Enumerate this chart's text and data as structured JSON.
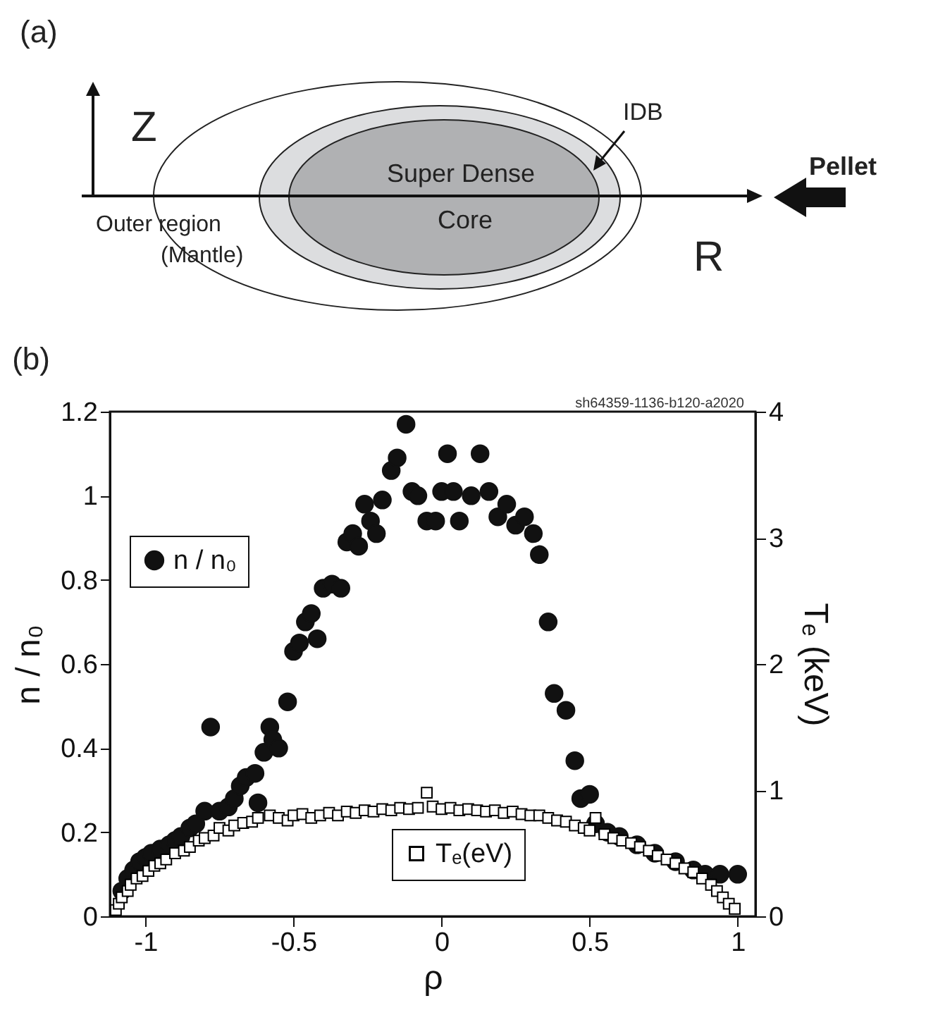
{
  "chart_data": [
    {
      "type": "other",
      "title": "(a)",
      "annotations": [
        "Z",
        "R",
        "IDB",
        "Super Dense\nCore",
        "Outer region\n(Mantle)",
        "Pellet"
      ]
    },
    {
      "type": "scatter",
      "title": "(b)",
      "xlabel": "ρ",
      "ylabel": "n / n₀",
      "y2label": "Tₑ (keV)",
      "annotations": [
        "sh64359-1136-b120-a2020"
      ],
      "xlim": [
        -1.12,
        1.06
      ],
      "xticks": [
        -1,
        -0.5,
        0,
        0.5,
        1
      ],
      "ylim": [
        0,
        1.2
      ],
      "yticks": [
        0,
        0.2,
        0.4,
        0.6,
        0.8,
        1,
        1.2
      ],
      "y2lim": [
        0,
        4
      ],
      "y2ticks": [
        0,
        1,
        2,
        3,
        4
      ],
      "grid": false,
      "legend": "left",
      "series": [
        {
          "name": "n / n₀",
          "color": "#111111",
          "marker": "circle",
          "x": [
            -1.08,
            -1.06,
            -1.04,
            -1.02,
            -1.0,
            -0.98,
            -0.95,
            -0.92,
            -0.9,
            -0.88,
            -0.85,
            -0.83,
            -0.8,
            -0.78,
            -0.75,
            -0.72,
            -0.7,
            -0.68,
            -0.66,
            -0.63,
            -0.62,
            -0.6,
            -0.58,
            -0.57,
            -0.55,
            -0.52,
            -0.5,
            -0.48,
            -0.46,
            -0.44,
            -0.42,
            -0.4,
            -0.37,
            -0.34,
            -0.32,
            -0.3,
            -0.28,
            -0.26,
            -0.24,
            -0.22,
            -0.2,
            -0.17,
            -0.15,
            -0.12,
            -0.1,
            -0.08,
            -0.05,
            -0.02,
            0.0,
            0.04,
            0.02,
            0.06,
            0.1,
            0.13,
            0.16,
            0.19,
            0.22,
            0.25,
            0.28,
            0.31,
            0.33,
            0.36,
            0.38,
            0.42,
            0.45,
            0.47,
            0.5,
            0.52,
            0.56,
            0.6,
            0.66,
            0.72,
            0.79,
            0.85,
            0.89,
            0.94,
            1.0
          ],
          "values": [
            0.06,
            0.09,
            0.11,
            0.13,
            0.14,
            0.15,
            0.16,
            0.17,
            0.18,
            0.19,
            0.21,
            0.22,
            0.25,
            0.45,
            0.25,
            0.26,
            0.28,
            0.31,
            0.33,
            0.34,
            0.27,
            0.39,
            0.45,
            0.42,
            0.4,
            0.51,
            0.63,
            0.65,
            0.7,
            0.72,
            0.66,
            0.78,
            0.79,
            0.78,
            0.89,
            0.91,
            0.88,
            0.98,
            0.94,
            0.91,
            0.99,
            1.06,
            1.09,
            1.17,
            1.01,
            1.0,
            0.94,
            0.94,
            1.01,
            1.01,
            1.1,
            0.94,
            1.0,
            1.1,
            1.01,
            0.95,
            0.98,
            0.93,
            0.95,
            0.91,
            0.86,
            0.7,
            0.53,
            0.49,
            0.37,
            0.28,
            0.29,
            0.22,
            0.2,
            0.19,
            0.17,
            0.15,
            0.13,
            0.11,
            0.1,
            0.1,
            0.1
          ]
        },
        {
          "name": "Tₑ(eV)",
          "color": "#000000",
          "marker": "square",
          "axis": "y2",
          "x": [
            -1.1,
            -1.09,
            -1.08,
            -1.06,
            -1.05,
            -1.03,
            -1.01,
            -0.99,
            -0.97,
            -0.95,
            -0.93,
            -0.9,
            -0.87,
            -0.85,
            -0.82,
            -0.8,
            -0.77,
            -0.75,
            -0.72,
            -0.7,
            -0.67,
            -0.64,
            -0.62,
            -0.58,
            -0.55,
            -0.52,
            -0.5,
            -0.47,
            -0.44,
            -0.41,
            -0.38,
            -0.35,
            -0.32,
            -0.29,
            -0.26,
            -0.23,
            -0.2,
            -0.17,
            -0.14,
            -0.11,
            -0.08,
            -0.05,
            -0.03,
            0.0,
            0.03,
            0.06,
            0.09,
            0.12,
            0.15,
            0.18,
            0.21,
            0.24,
            0.27,
            0.3,
            0.33,
            0.36,
            0.39,
            0.42,
            0.45,
            0.48,
            0.5,
            0.52,
            0.55,
            0.58,
            0.61,
            0.64,
            0.67,
            0.7,
            0.73,
            0.76,
            0.79,
            0.82,
            0.85,
            0.88,
            0.91,
            0.93,
            0.95,
            0.97,
            0.99
          ],
          "values": [
            0.05,
            0.1,
            0.15,
            0.2,
            0.25,
            0.3,
            0.32,
            0.36,
            0.4,
            0.42,
            0.45,
            0.5,
            0.52,
            0.55,
            0.6,
            0.62,
            0.64,
            0.7,
            0.68,
            0.72,
            0.74,
            0.75,
            0.78,
            0.8,
            0.78,
            0.76,
            0.8,
            0.81,
            0.78,
            0.8,
            0.82,
            0.8,
            0.83,
            0.82,
            0.84,
            0.83,
            0.85,
            0.84,
            0.86,
            0.85,
            0.86,
            0.98,
            0.87,
            0.85,
            0.86,
            0.84,
            0.85,
            0.84,
            0.83,
            0.84,
            0.82,
            0.83,
            0.81,
            0.8,
            0.8,
            0.78,
            0.76,
            0.75,
            0.72,
            0.7,
            0.68,
            0.78,
            0.65,
            0.62,
            0.6,
            0.58,
            0.55,
            0.52,
            0.48,
            0.45,
            0.42,
            0.38,
            0.35,
            0.3,
            0.25,
            0.2,
            0.15,
            0.1,
            0.06
          ]
        }
      ]
    }
  ]
}
